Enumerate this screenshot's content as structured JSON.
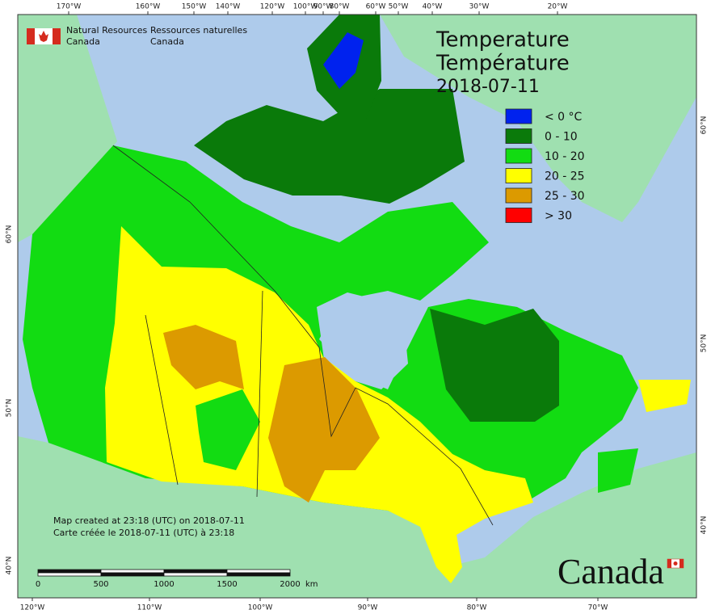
{
  "agency": {
    "en": [
      "Natural Resources",
      "Canada"
    ],
    "fr": [
      "Ressources naturelles",
      "Canada"
    ]
  },
  "title": [
    "Temperature",
    "Température",
    "2018-07-11"
  ],
  "legend": [
    {
      "label": "< 0 °C",
      "color": "#0022ee"
    },
    {
      "label": "0 - 10",
      "color": "#0a7a0a"
    },
    {
      "label": "10 - 20",
      "color": "#12dc12"
    },
    {
      "label": "20 - 25",
      "color": "#ffff00"
    },
    {
      "label": "25 - 30",
      "color": "#dc9a00"
    },
    {
      "label": "> 30",
      "color": "#ff0000"
    }
  ],
  "top_labels": [
    "170°W",
    "160°W",
    "150°W",
    "140°W",
    "120°W",
    "100°W",
    "90°W",
    "80°W",
    "60°W",
    "50°W",
    "40°W",
    "30°W",
    "20°W"
  ],
  "bottom_labels": [
    "120°W",
    "110°W",
    "100°W",
    "90°W",
    "80°W",
    "70°W"
  ],
  "left_labels": [
    "60°N",
    "50°N",
    "40°N"
  ],
  "right_labels": [
    "60°N",
    "50°N",
    "40°N"
  ],
  "notes": [
    "Map created at 23:18 (UTC) on 2018-07-11",
    "Carte créée le 2018-07-11 (UTC) à 23:18"
  ],
  "scale": {
    "ticks": [
      "0",
      "500",
      "1000",
      "1500",
      "2000"
    ],
    "unit": "km"
  },
  "wordmark": "Canada"
}
